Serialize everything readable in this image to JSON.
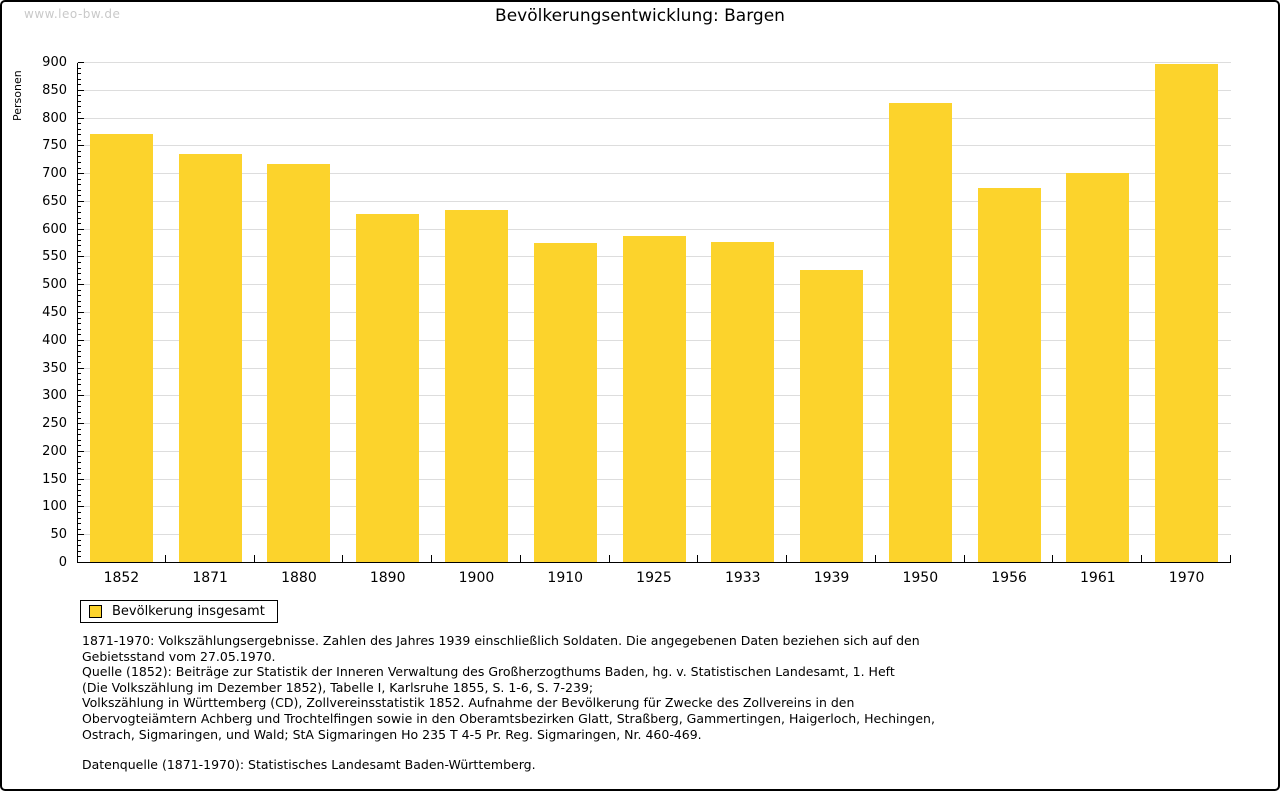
{
  "watermark": "www.leo-bw.de",
  "title": "Bevölkerungsentwicklung: Bargen",
  "chart_data": {
    "type": "bar",
    "title": "Bevölkerungsentwicklung: Bargen",
    "xlabel": "",
    "ylabel": "Personen",
    "categories": [
      "1852",
      "1871",
      "1880",
      "1890",
      "1900",
      "1910",
      "1925",
      "1933",
      "1939",
      "1950",
      "1956",
      "1961",
      "1970"
    ],
    "values": [
      770,
      735,
      717,
      626,
      633,
      574,
      586,
      576,
      525,
      827,
      673,
      700,
      896
    ],
    "series_name": "Bevölkerung insgesamt",
    "ylim": [
      0,
      900
    ],
    "ytick_step": 50,
    "ytick_minor_step": 10,
    "grid": "horizontal-major",
    "legend_position": "bottom-left",
    "bar_color": "#FCD32C",
    "gridline_color": "#DDDDDD",
    "axis_color": "#000000"
  },
  "legend": {
    "items": [
      {
        "label": "Bevölkerung insgesamt",
        "color": "#FCD32C"
      }
    ]
  },
  "footer": {
    "source_lines": [
      "1871-1970: Volkszählungsergebnisse. Zahlen des Jahres 1939 einschließlich Soldaten. Die angegebenen Daten beziehen sich auf den",
      "Gebietsstand vom 27.05.1970.",
      "Quelle (1852): Beiträge zur Statistik der Inneren Verwaltung des Großherzogthums Baden, hg. v. Statistischen Landesamt, 1. Heft",
      "(Die Volkszählung im Dezember 1852), Tabelle I, Karlsruhe 1855, S. 1-6, S. 7-239;",
      "Volkszählung in Württemberg (CD), Zollvereinsstatistik 1852. Aufnahme der Bevölkerung für Zwecke des Zollvereins in den",
      "Obervogteiämtern Achberg und Trochtelfingen sowie in den Oberamtsbezirken Glatt, Straßberg, Gammertingen, Haigerloch, Hechingen,",
      "Ostrach, Sigmaringen, und Wald; StA Sigmaringen Ho 235 T 4-5 Pr. Reg. Sigmaringen, Nr. 460-469."
    ],
    "data_source": "Datenquelle (1871-1970): Statistisches Landesamt Baden-Württemberg."
  }
}
